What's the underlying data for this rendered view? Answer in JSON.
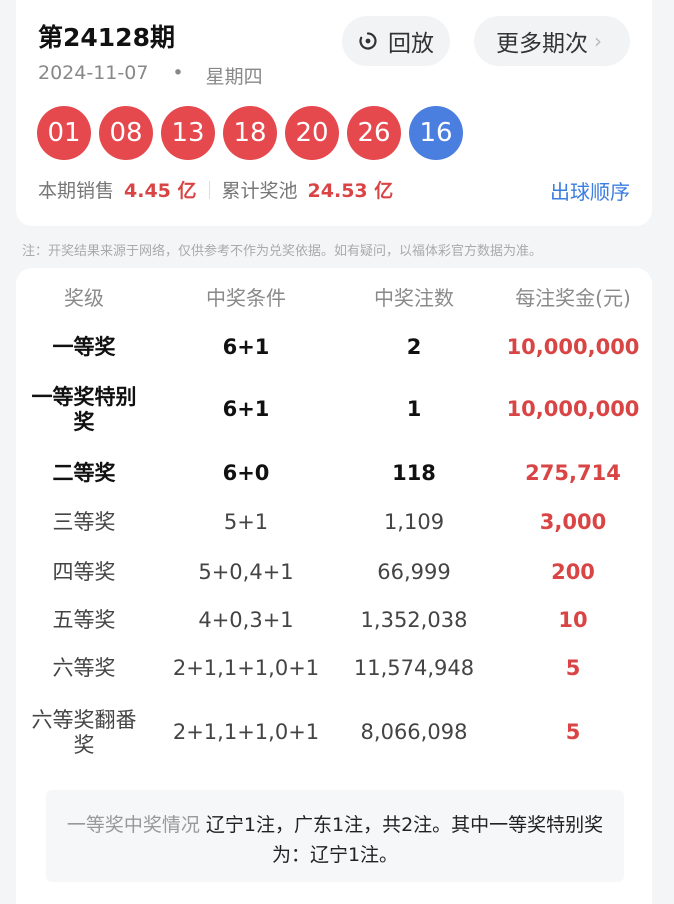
{
  "header": {
    "issue_title": "第24128期",
    "date": "2024-11-07",
    "weekday": "星期四",
    "dot": "•",
    "replay_label": "回放",
    "more_label": "更多期次",
    "more_chevron": "›"
  },
  "balls": {
    "red": [
      "01",
      "08",
      "13",
      "18",
      "20",
      "26"
    ],
    "blue": [
      "16"
    ]
  },
  "sales": {
    "sales_label": "本期销售",
    "sales_value": "4.45 亿",
    "pool_label": "累计奖池",
    "pool_value": "24.53 亿",
    "order_link": "出球顺序"
  },
  "note": "注：开奖结果来源于网络，仅供参考不作为兑奖依据。如有疑问，以福体彩官方数据为准。",
  "table": {
    "headers": [
      "奖级",
      "中奖条件",
      "中奖注数",
      "每注奖金(元)"
    ],
    "rows": [
      {
        "level": "一等奖",
        "cond": "6+1",
        "count": "2",
        "prize": "10,000,000"
      },
      {
        "level": "一等奖特别奖",
        "cond": "6+1",
        "count": "1",
        "prize": "10,000,000"
      },
      {
        "level": "二等奖",
        "cond": "6+0",
        "count": "118",
        "prize": "275,714"
      },
      {
        "level": "三等奖",
        "cond": "5+1",
        "count": "1,109",
        "prize": "3,000"
      },
      {
        "level": "四等奖",
        "cond": "5+0,4+1",
        "count": "66,999",
        "prize": "200"
      },
      {
        "level": "五等奖",
        "cond": "4+0,3+1",
        "count": "1,352,038",
        "prize": "10"
      },
      {
        "level": "六等奖",
        "cond": "2+1,1+1,0+1",
        "count": "11,574,948",
        "prize": "5"
      },
      {
        "level": "六等奖翻番奖",
        "cond": "2+1,1+1,0+1",
        "count": "8,066,098",
        "prize": "5"
      }
    ]
  },
  "summary": {
    "label": "一等奖中奖情况",
    "text": "辽宁1注，广东1注，共2注。其中一等奖特别奖为：辽宁1注。"
  },
  "colors": {
    "red_ball": "#e5484d",
    "blue_ball": "#4a7fe0",
    "accent_red": "#d94545",
    "link_blue": "#3b7de0"
  }
}
